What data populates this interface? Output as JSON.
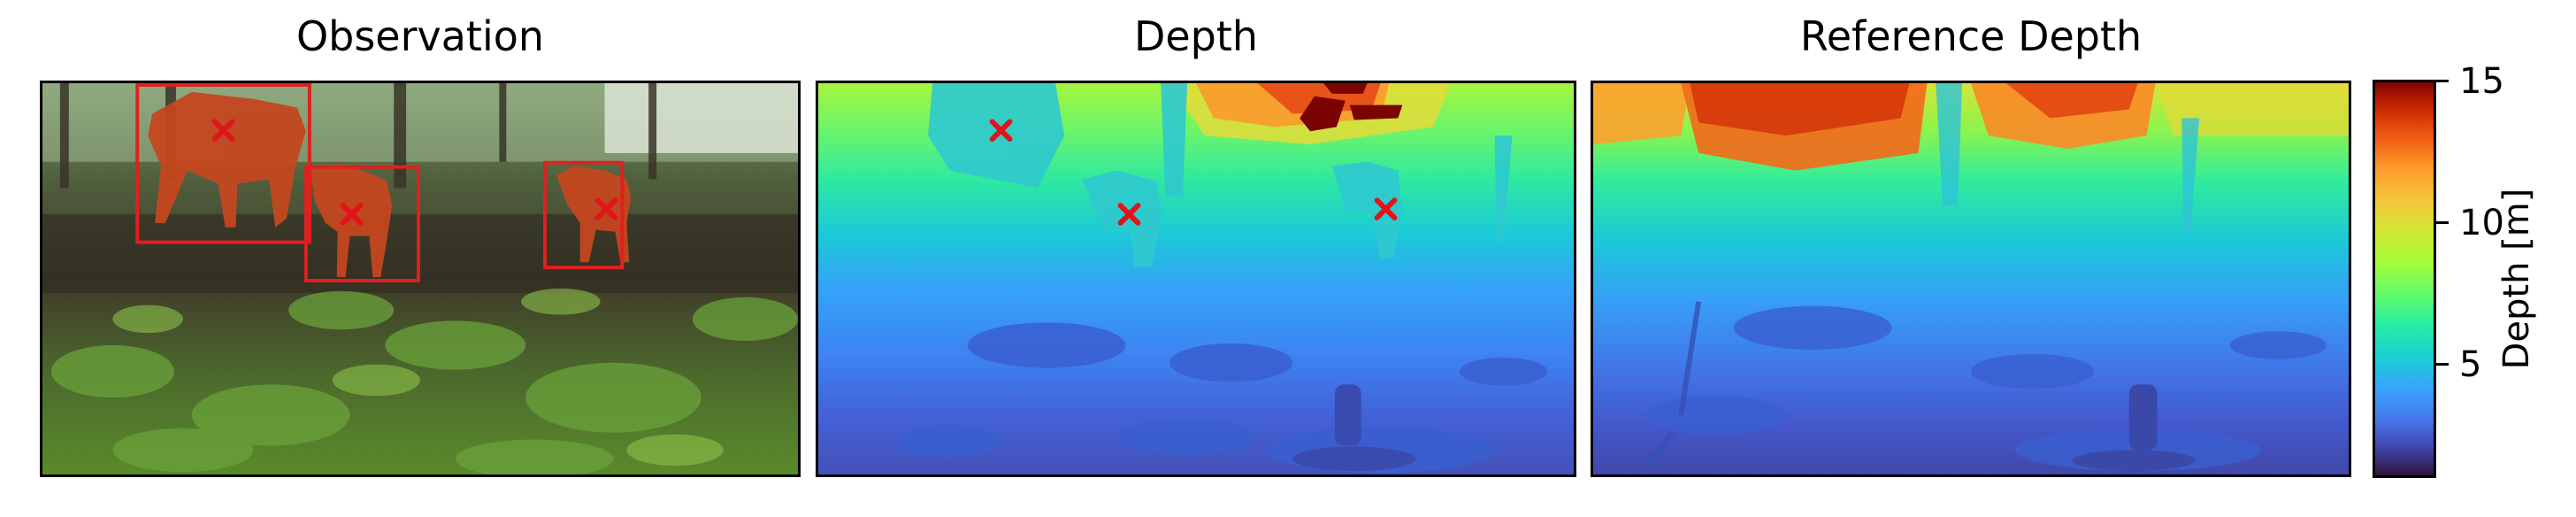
{
  "panels": {
    "observation": {
      "title": "Observation"
    },
    "depth": {
      "title": "Depth"
    },
    "reference": {
      "title": "Reference Depth"
    }
  },
  "colorbar": {
    "label": "Depth [m]",
    "ticks": [
      "15",
      "10",
      "5"
    ],
    "range": [
      1,
      15
    ],
    "colormap": "turbo"
  },
  "colors": {
    "marker": "#e0141a",
    "box": "#e02020"
  }
}
